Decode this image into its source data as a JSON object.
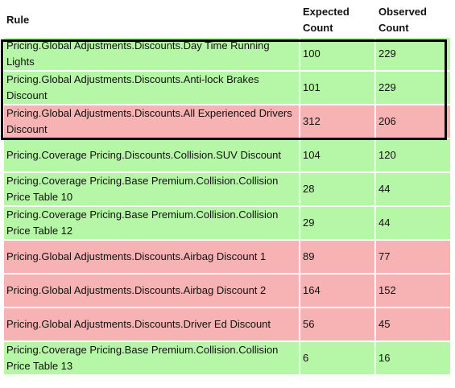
{
  "table": {
    "headers": {
      "rule": "Rule",
      "expected": "Expected Count",
      "observed": "Observed Count"
    },
    "rows": [
      {
        "rule": "Pricing.Global Adjustments.Discounts.Day Time Running Lights",
        "expected": "100",
        "observed": "229",
        "status": "pass"
      },
      {
        "rule": "Pricing.Global Adjustments.Discounts.Anti-lock Brakes Discount",
        "expected": "101",
        "observed": "229",
        "status": "pass"
      },
      {
        "rule": "Pricing.Global Adjustments.Discounts.All Experienced Drivers Discount",
        "expected": "312",
        "observed": "206",
        "status": "fail"
      },
      {
        "rule": "Pricing.Coverage Pricing.Discounts.Collision.SUV Discount",
        "expected": "104",
        "observed": "120",
        "status": "pass"
      },
      {
        "rule": "Pricing.Coverage Pricing.Base Premium.Collision.Collision Price Table 10",
        "expected": "28",
        "observed": "44",
        "status": "pass"
      },
      {
        "rule": "Pricing.Coverage Pricing.Base Premium.Collision.Collision Price Table 12",
        "expected": "29",
        "observed": "44",
        "status": "pass"
      },
      {
        "rule": "Pricing.Global Adjustments.Discounts.Airbag Discount 1",
        "expected": "89",
        "observed": "77",
        "status": "fail"
      },
      {
        "rule": "Pricing.Global Adjustments.Discounts.Airbag Discount 2",
        "expected": "164",
        "observed": "152",
        "status": "fail"
      },
      {
        "rule": "Pricing.Global Adjustments.Discounts.Driver Ed Discount",
        "expected": "56",
        "observed": "45",
        "status": "fail"
      },
      {
        "rule": "Pricing.Coverage Pricing.Base Premium.Collision.Collision Price Table 13",
        "expected": "6",
        "observed": "16",
        "status": "pass"
      }
    ]
  },
  "colors": {
    "pass": "#b6f7a7",
    "fail": "#f7b3b3",
    "highlight_border": "#000000"
  }
}
